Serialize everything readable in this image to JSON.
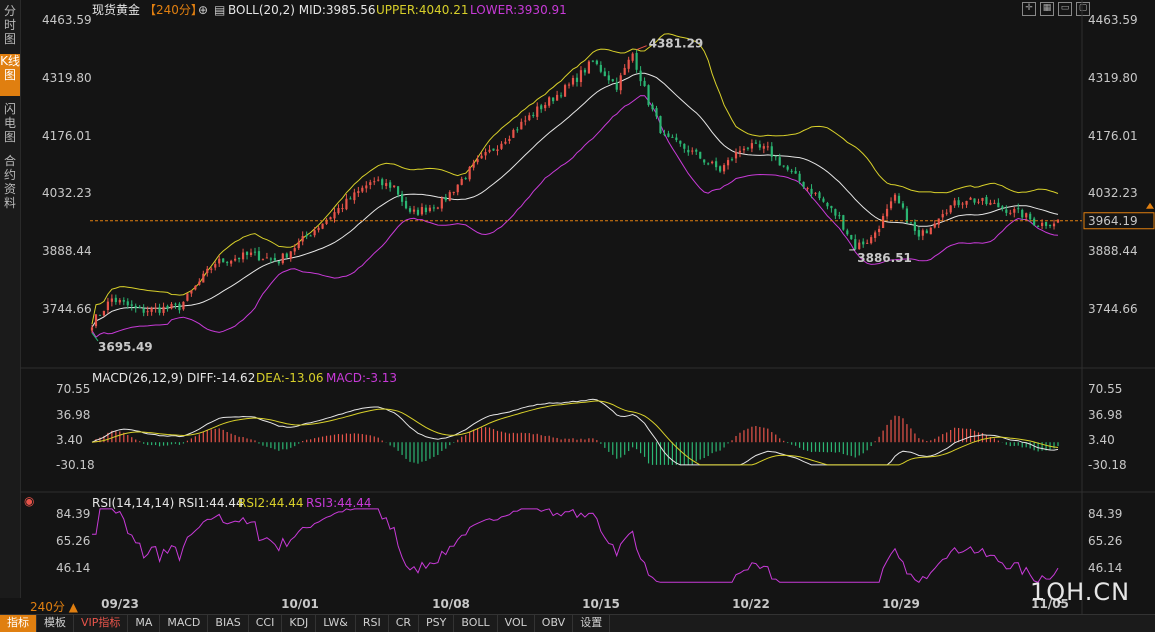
{
  "sidebar": {
    "tabs": [
      {
        "label": "分时图",
        "active": false
      },
      {
        "label": "K线图",
        "active": true
      },
      {
        "label": "闪电图",
        "active": false
      },
      {
        "label": "合约资料",
        "active": false
      }
    ]
  },
  "header": {
    "instrument": "现货黄金",
    "period": "【240分】",
    "boll": "BOLL(20,2) MID:3985.56",
    "upper": "UPPER:4040.21",
    "lower": "LOWER:3930.91"
  },
  "macd_header": {
    "label": "MACD(26,12,9) DIFF:-14.62",
    "dea": "DEA:-13.06",
    "macd": "MACD:-3.13"
  },
  "rsi_header": {
    "label": "RSI(14,14,14) RSI1:44.44",
    "rsi2": "RSI2:44.44",
    "rsi3": "RSI3:44.44"
  },
  "period_tag": "240分 ▲",
  "watermark": "1QH.CN",
  "toolbar": [
    "指标",
    "模板",
    "VIP指标",
    "MA",
    "MACD",
    "BIAS",
    "CCI",
    "KDJ",
    "LW&",
    "RSI",
    "CR",
    "PSY",
    "BOLL",
    "VOL",
    "OBV",
    "设置"
  ],
  "colors": {
    "up": "#e8544a",
    "down": "#2bb673",
    "mid": "#e6e6e6",
    "upper": "#d8d02a",
    "lower": "#c83ad8",
    "accent": "#e07f10",
    "current": "#e07f10"
  },
  "chart_data": [
    {
      "type": "candlestick",
      "name": "price",
      "y_ticks": [
        4463.59,
        4319.8,
        4176.01,
        4032.23,
        3888.44,
        3744.66
      ],
      "x_ticks": [
        "09/23",
        "10/01",
        "10/08",
        "10/15",
        "10/22",
        "10/29",
        "11/05"
      ],
      "ylim": [
        3650,
        4480
      ],
      "high_label": "4381.29",
      "low_label_1": "3695.49",
      "low_label_2": "3886.51",
      "current_price": "3964.19",
      "anchors": [
        [
          0,
          3710
        ],
        [
          5,
          3770
        ],
        [
          12,
          3740
        ],
        [
          22,
          3750
        ],
        [
          31,
          3860
        ],
        [
          40,
          3880
        ],
        [
          47,
          3865
        ],
        [
          58,
          3960
        ],
        [
          64,
          4010
        ],
        [
          70,
          4060
        ],
        [
          76,
          4050
        ],
        [
          80,
          3980
        ],
        [
          88,
          4010
        ],
        [
          96,
          4100
        ],
        [
          104,
          4170
        ],
        [
          112,
          4240
        ],
        [
          120,
          4300
        ],
        [
          126,
          4360
        ],
        [
          132,
          4300
        ],
        [
          136,
          4380
        ],
        [
          140,
          4260
        ],
        [
          144,
          4170
        ],
        [
          150,
          4140
        ],
        [
          158,
          4090
        ],
        [
          164,
          4150
        ],
        [
          170,
          4140
        ],
        [
          176,
          4080
        ],
        [
          182,
          4030
        ],
        [
          188,
          3970
        ],
        [
          192,
          3900
        ],
        [
          196,
          3920
        ],
        [
          202,
          4020
        ],
        [
          208,
          3920
        ],
        [
          214,
          3990
        ],
        [
          220,
          4020
        ],
        [
          228,
          4000
        ],
        [
          234,
          3980
        ],
        [
          238,
          3955
        ],
        [
          243,
          3964
        ]
      ]
    },
    {
      "type": "line",
      "name": "MACD",
      "y_ticks": [
        70.55,
        36.98,
        3.4,
        -30.18
      ]
    },
    {
      "type": "line",
      "name": "RSI",
      "y_ticks": [
        84.39,
        65.26,
        46.14
      ]
    }
  ]
}
